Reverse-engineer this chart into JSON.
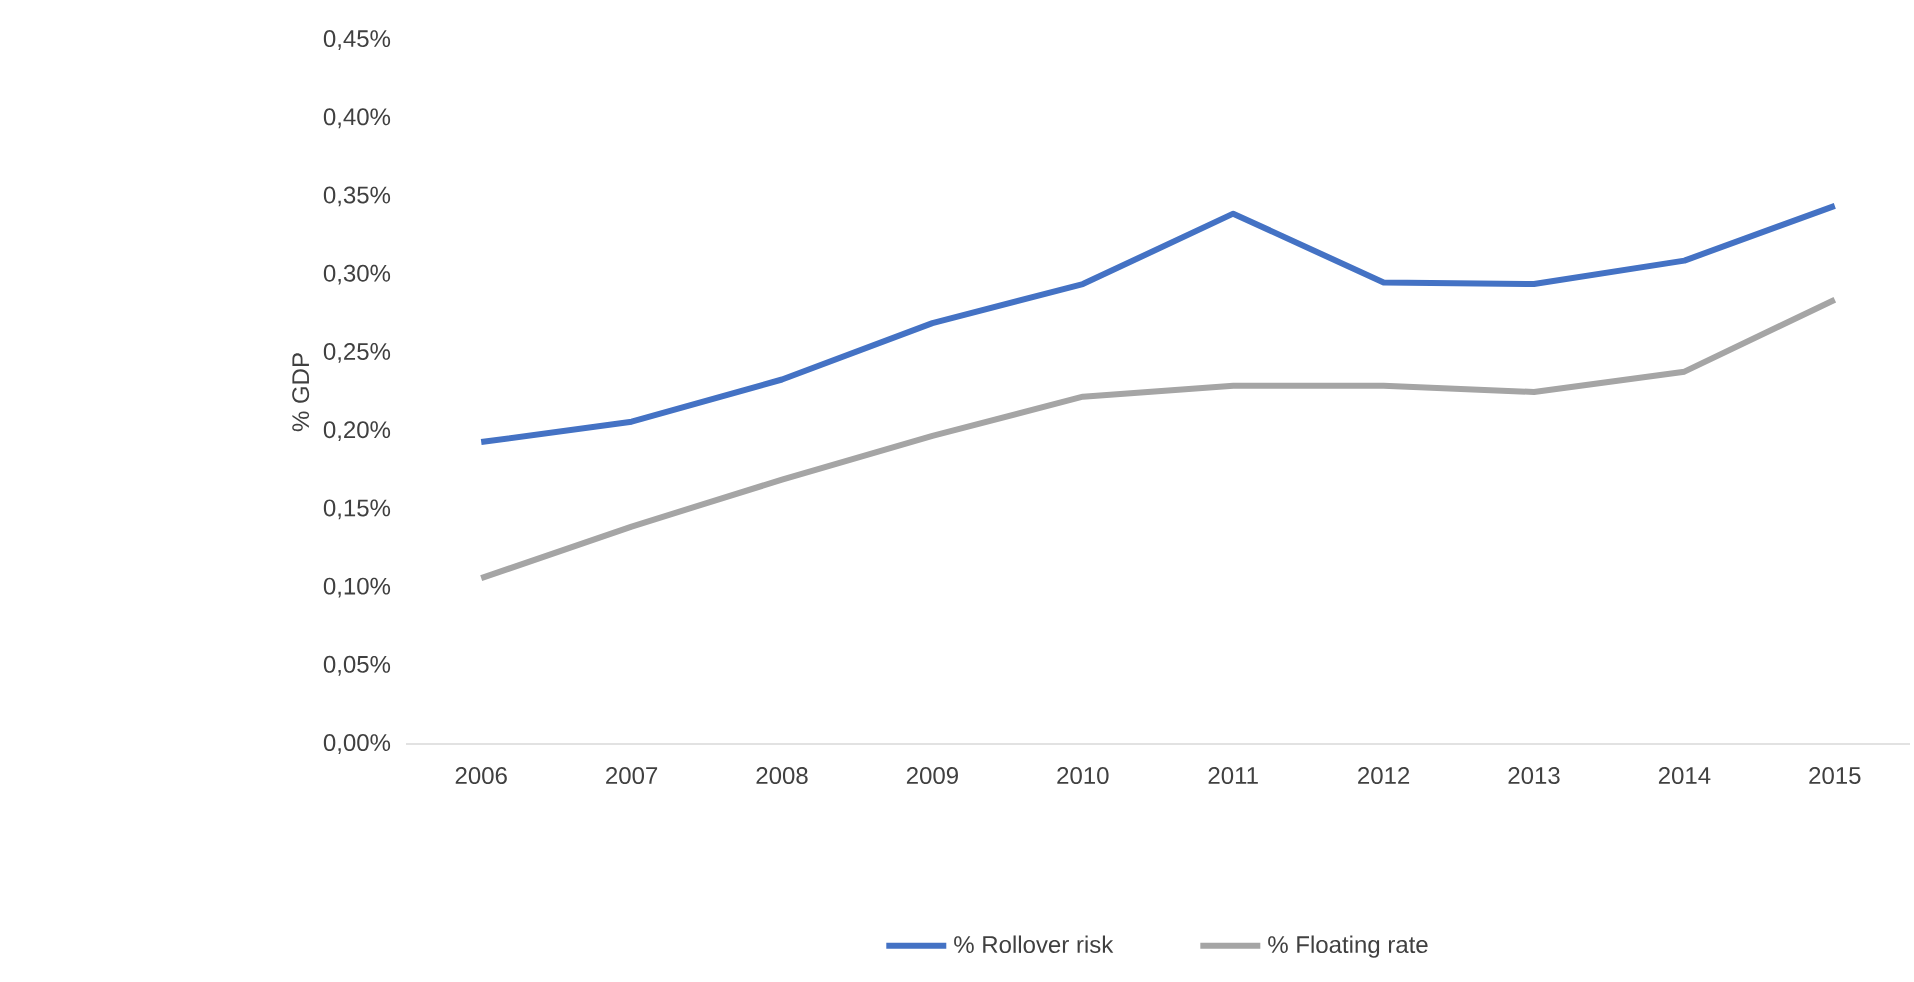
{
  "chart_data": {
    "type": "line",
    "ylabel": "% GDP",
    "categories": [
      "2006",
      "2007",
      "2008",
      "2009",
      "2010",
      "2011",
      "2012",
      "2013",
      "2014",
      "2015"
    ],
    "series": [
      {
        "name": "% Rollover risk",
        "color": "#4472c4",
        "values": [
          0.193,
          0.206,
          0.233,
          0.269,
          0.294,
          0.339,
          0.295,
          0.294,
          0.309,
          0.344
        ]
      },
      {
        "name": "% Floating rate",
        "color": "#a5a5a5",
        "values": [
          0.106,
          0.139,
          0.169,
          0.197,
          0.222,
          0.229,
          0.229,
          0.225,
          0.238,
          0.284
        ]
      }
    ],
    "ylim": [
      0,
      0.45
    ],
    "yticks": [
      {
        "value": 0,
        "label": "0,00%"
      },
      {
        "value": 0.05,
        "label": "0,05%"
      },
      {
        "value": 0.1,
        "label": "0,10%"
      },
      {
        "value": 0.15,
        "label": "0,15%"
      },
      {
        "value": 0.2,
        "label": "0,20%"
      },
      {
        "value": 0.25,
        "label": "0,25%"
      },
      {
        "value": 0.3,
        "label": "0,30%"
      },
      {
        "value": 0.35,
        "label": "0,35%"
      },
      {
        "value": 0.4,
        "label": "0,40%"
      },
      {
        "value": 0.45,
        "label": "0,45%"
      }
    ],
    "grid": false,
    "legend": "bottom",
    "marker": "none",
    "line_style": "solid"
  }
}
